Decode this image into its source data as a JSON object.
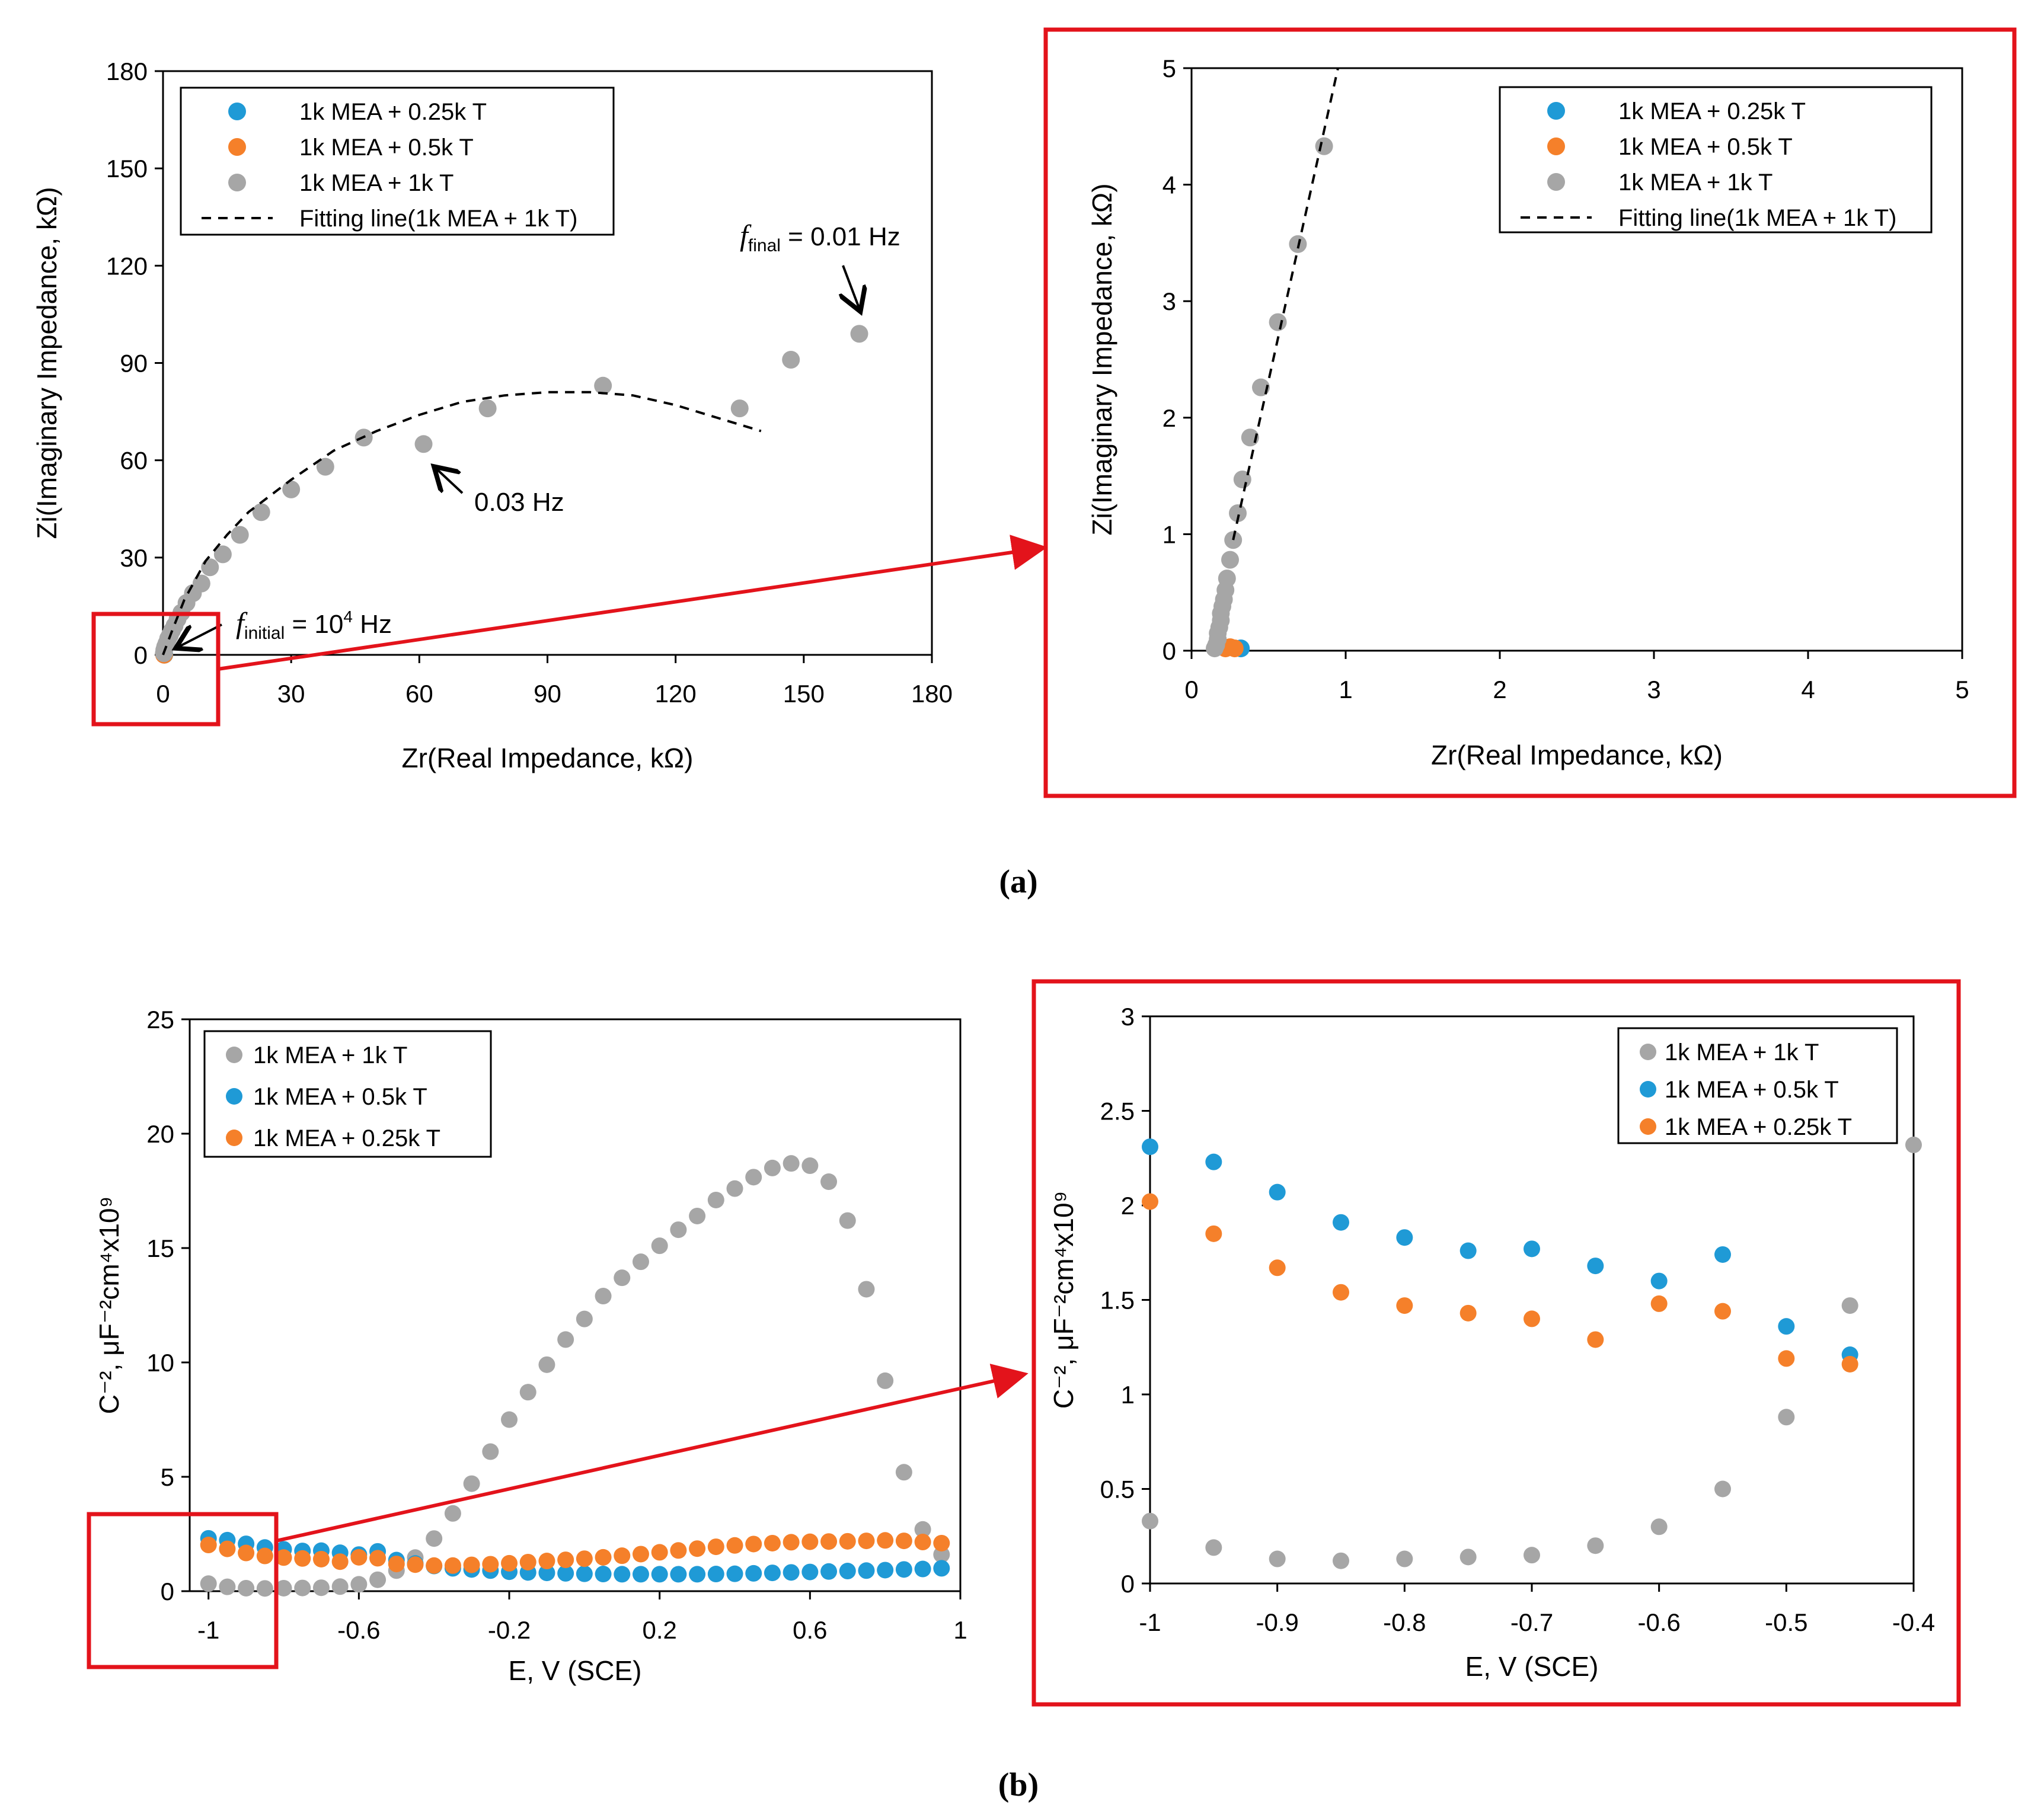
{
  "captions": {
    "a": "(a)",
    "b": "(b)"
  },
  "annotations": {
    "f_final_sym": "f",
    "f_final_sub": "final",
    "f_final_val": " = 0.01 Hz",
    "f_mid": "0.03 Hz",
    "f_initial_sym": "f",
    "f_initial_sub": "initial",
    "f_initial_val": " = 10",
    "f_initial_exp": "4",
    "f_initial_unit": " Hz"
  },
  "colors": {
    "blue": "#1f9ad6",
    "orange": "#f5802a",
    "gray": "#a6a6a6",
    "red": "#e3131b"
  },
  "chart_data": [
    {
      "id": "a-main",
      "type": "scatter",
      "xlabel": "Zr(Real Impedance, kΩ)",
      "ylabel": "Zi(Imaginary Impedance, kΩ)",
      "xlim": [
        0,
        180
      ],
      "ylim": [
        0,
        180
      ],
      "xticks": [
        "0",
        "30",
        "60",
        "90",
        "120",
        "150",
        "180"
      ],
      "yticks": [
        "0",
        "30",
        "60",
        "90",
        "120",
        "150",
        "180"
      ],
      "legend": [
        "1k MEA + 0.25k T",
        "1k MEA + 0.5k T",
        "1k MEA + 1k T",
        "Fitting line(1k MEA + 1k T)"
      ],
      "series": [
        {
          "name": "1k MEA + 0.25k T",
          "color": "blue",
          "x": [
            0.3
          ],
          "y": [
            0.05
          ]
        },
        {
          "name": "1k MEA + 0.5k T",
          "color": "orange",
          "x": [
            0.25
          ],
          "y": [
            0.05
          ]
        },
        {
          "name": "1k MEA + 1k T",
          "color": "gray",
          "x": [
            0.2,
            0.3,
            0.5,
            0.8,
            1.2,
            1.6,
            2.1,
            2.7,
            3.4,
            4.3,
            5.5,
            7,
            9,
            11,
            14,
            18,
            23,
            30,
            38,
            47,
            61,
            76,
            103,
            135,
            147,
            163
          ],
          "y": [
            0.5,
            1.5,
            2.5,
            3.5,
            5,
            6,
            7.5,
            9,
            11,
            13,
            16,
            19,
            22,
            27,
            31,
            37,
            44,
            51,
            58,
            67,
            65,
            76,
            83,
            76,
            91,
            99
          ]
        },
        {
          "name": "Fitting line(1k MEA + 1k T)",
          "style": "dashed",
          "x": [
            0,
            2,
            5,
            10,
            15,
            20,
            30,
            40,
            50,
            60,
            70,
            80,
            90,
            100,
            110,
            120,
            130,
            140
          ],
          "y": [
            0,
            7,
            17,
            29,
            37,
            44,
            54,
            63,
            69,
            74,
            78,
            80,
            81,
            81,
            80,
            77,
            73,
            69
          ]
        }
      ]
    },
    {
      "id": "a-zoom",
      "type": "scatter",
      "xlabel": "Zr(Real Impedance, kΩ)",
      "ylabel": "Zi(Imaginary Impedance, kΩ)",
      "xlim": [
        0,
        5
      ],
      "ylim": [
        0,
        5
      ],
      "xticks": [
        "0",
        "1",
        "2",
        "3",
        "4",
        "5"
      ],
      "yticks": [
        "0",
        "1",
        "2",
        "3",
        "4",
        "5"
      ],
      "legend": [
        "1k MEA + 0.25k T",
        "1k MEA + 0.5k T",
        "1k MEA + 1k T",
        "Fitting line(1k MEA + 1k T)"
      ],
      "series": [
        {
          "name": "1k MEA + 0.25k T",
          "color": "blue",
          "x": [
            0.32
          ],
          "y": [
            0.02
          ]
        },
        {
          "name": "1k MEA + 0.5k T",
          "color": "orange",
          "x": [
            0.22,
            0.25,
            0.28
          ],
          "y": [
            0.02,
            0.03,
            0.02
          ]
        },
        {
          "name": "1k MEA + 1k T",
          "color": "gray",
          "x": [
            0.15,
            0.16,
            0.17,
            0.17,
            0.18,
            0.19,
            0.19,
            0.2,
            0.21,
            0.22,
            0.23,
            0.25,
            0.27,
            0.3,
            0.33,
            0.38,
            0.45,
            0.56,
            0.69,
            0.86
          ],
          "y": [
            0.02,
            0.05,
            0.1,
            0.15,
            0.2,
            0.26,
            0.32,
            0.38,
            0.44,
            0.52,
            0.62,
            0.78,
            0.95,
            1.18,
            1.47,
            1.83,
            2.26,
            2.82,
            3.49,
            4.33
          ]
        },
        {
          "name": "Fitting line(1k MEA + 1k T)",
          "style": "dashed",
          "x": [
            0.27,
            0.95
          ],
          "y": [
            0.95,
            5.0
          ]
        }
      ]
    },
    {
      "id": "b-main",
      "type": "scatter",
      "xlabel": "E, V (SCE)",
      "ylabel": "C⁻², μF⁻²cm⁴x10⁹",
      "xlim": [
        -1.05,
        1
      ],
      "ylim": [
        0,
        25
      ],
      "xticks": [
        "-1",
        "-0.6",
        "-0.2",
        "0.2",
        "0.6",
        "1"
      ],
      "yticks": [
        "0",
        "5",
        "10",
        "15",
        "20",
        "25"
      ],
      "legend": [
        "1k MEA + 1k T",
        "1k MEA + 0.5k T",
        "1k MEA + 0.25k T"
      ],
      "series": [
        {
          "name": "1k MEA + 1k T",
          "color": "gray",
          "x": [
            -1,
            -0.95,
            -0.9,
            -0.85,
            -0.8,
            -0.75,
            -0.7,
            -0.65,
            -0.6,
            -0.55,
            -0.5,
            -0.45,
            -0.4,
            -0.35,
            -0.3,
            -0.25,
            -0.2,
            -0.15,
            -0.1,
            -0.05,
            0,
            0.05,
            0.1,
            0.15,
            0.2,
            0.25,
            0.3,
            0.35,
            0.4,
            0.45,
            0.5,
            0.55,
            0.6,
            0.65,
            0.7,
            0.75,
            0.8,
            0.85,
            0.9,
            0.95
          ],
          "y": [
            0.33,
            0.19,
            0.13,
            0.12,
            0.13,
            0.14,
            0.15,
            0.2,
            0.3,
            0.5,
            0.9,
            1.47,
            2.3,
            3.4,
            4.7,
            6.1,
            7.5,
            8.7,
            9.9,
            11,
            11.9,
            12.9,
            13.7,
            14.4,
            15.1,
            15.8,
            16.4,
            17.1,
            17.6,
            18.1,
            18.5,
            18.7,
            18.6,
            17.9,
            16.2,
            13.2,
            9.2,
            5.2,
            2.7,
            1.6
          ]
        },
        {
          "name": "1k MEA + 0.5k T",
          "color": "blue",
          "x": [
            -1,
            -0.95,
            -0.9,
            -0.85,
            -0.8,
            -0.75,
            -0.7,
            -0.65,
            -0.6,
            -0.55,
            -0.5,
            -0.45,
            -0.4,
            -0.35,
            -0.3,
            -0.25,
            -0.2,
            -0.15,
            -0.1,
            -0.05,
            0,
            0.05,
            0.1,
            0.15,
            0.2,
            0.25,
            0.3,
            0.35,
            0.4,
            0.45,
            0.5,
            0.55,
            0.6,
            0.65,
            0.7,
            0.75,
            0.8,
            0.85,
            0.9,
            0.95
          ],
          "y": [
            2.31,
            2.23,
            2.07,
            1.91,
            1.83,
            1.76,
            1.77,
            1.68,
            1.6,
            1.74,
            1.36,
            1.21,
            1.1,
            1.0,
            0.95,
            0.9,
            0.85,
            0.82,
            0.8,
            0.78,
            0.76,
            0.75,
            0.74,
            0.74,
            0.74,
            0.74,
            0.74,
            0.75,
            0.76,
            0.78,
            0.8,
            0.82,
            0.84,
            0.86,
            0.88,
            0.9,
            0.92,
            0.95,
            0.97,
            1.0
          ]
        },
        {
          "name": "1k MEA + 0.25k T",
          "color": "orange",
          "x": [
            -1,
            -0.95,
            -0.9,
            -0.85,
            -0.8,
            -0.75,
            -0.7,
            -0.65,
            -0.6,
            -0.55,
            -0.5,
            -0.45,
            -0.4,
            -0.35,
            -0.3,
            -0.25,
            -0.2,
            -0.15,
            -0.1,
            -0.05,
            0,
            0.05,
            0.1,
            0.15,
            0.2,
            0.25,
            0.3,
            0.35,
            0.4,
            0.45,
            0.5,
            0.55,
            0.6,
            0.65,
            0.7,
            0.75,
            0.8,
            0.85,
            0.9,
            0.95
          ],
          "y": [
            2.02,
            1.85,
            1.67,
            1.54,
            1.47,
            1.43,
            1.4,
            1.29,
            1.48,
            1.44,
            1.19,
            1.16,
            1.12,
            1.12,
            1.15,
            1.18,
            1.22,
            1.27,
            1.32,
            1.37,
            1.42,
            1.48,
            1.55,
            1.62,
            1.7,
            1.78,
            1.86,
            1.94,
            2.0,
            2.06,
            2.1,
            2.14,
            2.16,
            2.17,
            2.18,
            2.2,
            2.22,
            2.2,
            2.15,
            2.1
          ]
        }
      ]
    },
    {
      "id": "b-zoom",
      "type": "scatter",
      "xlabel": "E, V (SCE)",
      "ylabel": "C⁻², μF⁻²cm⁴x10⁹",
      "xlim": [
        -1,
        -0.4
      ],
      "ylim": [
        0,
        3
      ],
      "xticks": [
        "-1",
        "-0.9",
        "-0.8",
        "-0.7",
        "-0.6",
        "-0.5",
        "-0.4"
      ],
      "yticks": [
        "0",
        "0.5",
        "1",
        "1.5",
        "2",
        "2.5",
        "3"
      ],
      "legend": [
        "1k MEA + 1k T",
        "1k MEA + 0.5k T",
        "1k MEA + 0.25k T"
      ],
      "series": [
        {
          "name": "1k MEA + 1k T",
          "color": "gray",
          "x": [
            -1,
            -0.95,
            -0.9,
            -0.85,
            -0.8,
            -0.75,
            -0.7,
            -0.65,
            -0.6,
            -0.55,
            -0.5,
            -0.45,
            -0.4
          ],
          "y": [
            0.33,
            0.19,
            0.13,
            0.12,
            0.13,
            0.14,
            0.15,
            0.2,
            0.3,
            0.5,
            0.88,
            1.47,
            2.32
          ]
        },
        {
          "name": "1k MEA + 0.5k T",
          "color": "blue",
          "x": [
            -1,
            -0.95,
            -0.9,
            -0.85,
            -0.8,
            -0.75,
            -0.7,
            -0.65,
            -0.6,
            -0.55,
            -0.5,
            -0.45
          ],
          "y": [
            2.31,
            2.23,
            2.07,
            1.91,
            1.83,
            1.76,
            1.77,
            1.68,
            1.6,
            1.74,
            1.36,
            1.21
          ]
        },
        {
          "name": "1k MEA + 0.25k T",
          "color": "orange",
          "x": [
            -1,
            -0.95,
            -0.9,
            -0.85,
            -0.8,
            -0.75,
            -0.7,
            -0.65,
            -0.6,
            -0.55,
            -0.5,
            -0.45
          ],
          "y": [
            2.02,
            1.85,
            1.67,
            1.54,
            1.47,
            1.43,
            1.4,
            1.29,
            1.48,
            1.44,
            1.19,
            1.16
          ]
        }
      ]
    }
  ]
}
